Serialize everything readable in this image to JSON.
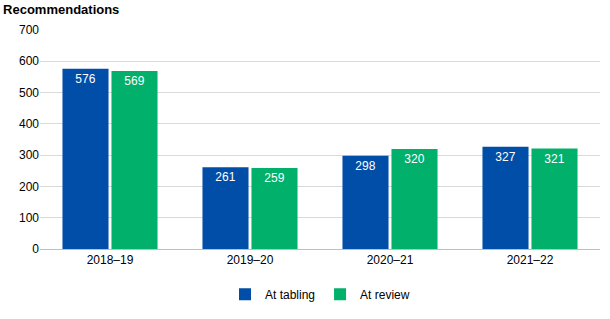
{
  "chart_data": {
    "type": "bar",
    "title": "Recommendations",
    "categories": [
      "2018–19",
      "2019–20",
      "2020–21",
      "2021–22"
    ],
    "series": [
      {
        "name": "At tabling",
        "color": "#004EA8",
        "values": [
          576,
          261,
          298,
          327
        ]
      },
      {
        "name": "At review",
        "color": "#00B06B",
        "values": [
          569,
          259,
          320,
          321
        ]
      }
    ],
    "ylim": [
      0,
      700
    ],
    "yticks": [
      0,
      100,
      200,
      300,
      400,
      500,
      600,
      700
    ],
    "grid": true,
    "legend": "bottom",
    "data_labels": true
  }
}
